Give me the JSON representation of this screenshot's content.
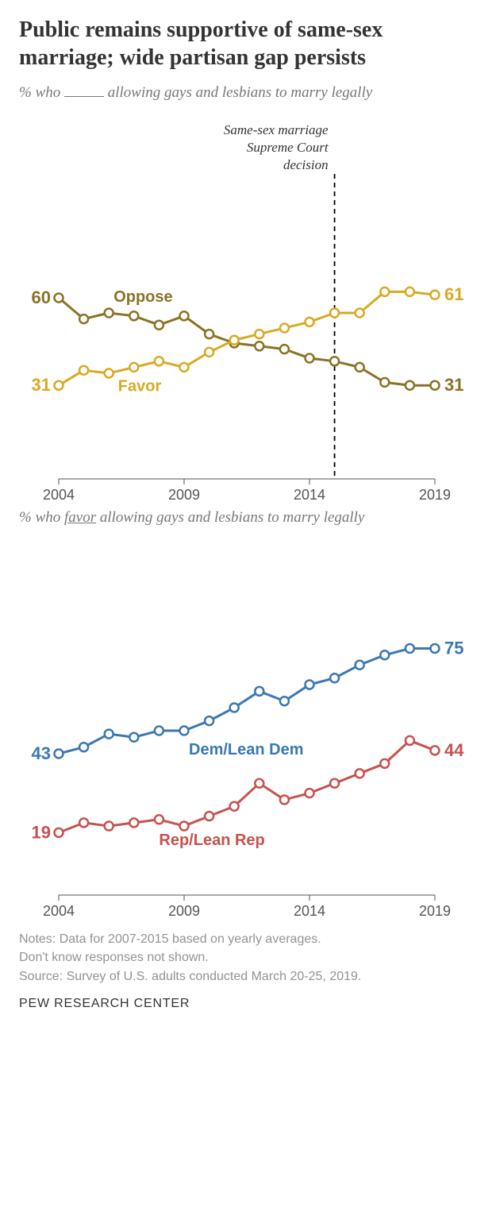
{
  "title": "Public remains supportive of same-sex marriage; wide partisan gap persists",
  "chart1": {
    "subtitle_pre": "% who ",
    "subtitle_post": " allowing gays and lesbians to marry legally",
    "years": [
      2004,
      2005,
      2006,
      2007,
      2008,
      2009,
      2010,
      2011,
      2012,
      2013,
      2014,
      2015,
      2016,
      2017,
      2018,
      2019
    ],
    "oppose": {
      "label": "Oppose",
      "color": "#8a7325",
      "values": [
        60,
        53,
        55,
        54,
        51,
        54,
        48,
        45,
        44,
        43,
        40,
        39,
        37,
        32,
        31,
        31
      ],
      "start_label": "60",
      "end_label": "31"
    },
    "favor": {
      "label": "Favor",
      "color": "#d8aa23",
      "values": [
        31,
        36,
        35,
        37,
        39,
        37,
        42,
        46,
        48,
        50,
        52,
        55,
        55,
        62,
        62,
        61
      ],
      "start_label": "31",
      "end_label": "61"
    },
    "annotation": {
      "line1": "Same-sex marriage",
      "line2": "Supreme Court",
      "line3": "decision",
      "year": 2015
    },
    "x_ticks": [
      2004,
      2009,
      2014,
      2019
    ],
    "y_range": [
      0,
      100
    ]
  },
  "chart2": {
    "subtitle_pre": "% who ",
    "subtitle_u": "favor",
    "subtitle_post": " allowing gays and lesbians to marry legally",
    "years": [
      2004,
      2005,
      2006,
      2007,
      2008,
      2009,
      2010,
      2011,
      2012,
      2013,
      2014,
      2015,
      2016,
      2017,
      2018,
      2019
    ],
    "dem": {
      "label": "Dem/Lean Dem",
      "color": "#3b77b3",
      "values": [
        43,
        45,
        49,
        48,
        50,
        50,
        53,
        57,
        62,
        59,
        64,
        66,
        70,
        73,
        75,
        75
      ],
      "start_label": "43",
      "end_label": "75"
    },
    "rep": {
      "label": "Rep/Lean Rep",
      "color": "#c5524f",
      "values": [
        19,
        22,
        21,
        22,
        23,
        21,
        24,
        27,
        34,
        29,
        31,
        34,
        37,
        40,
        47,
        44
      ],
      "start_label": "19",
      "end_label": "44"
    },
    "x_ticks": [
      2004,
      2009,
      2014,
      2019
    ],
    "y_range": [
      0,
      100
    ]
  },
  "notes": {
    "line1": "Notes: Data for 2007-2015 based on yearly averages.",
    "line2": "Don't know responses not shown.",
    "line3": "Source: Survey of U.S. adults conducted March 20-25, 2019."
  },
  "footer": "PEW RESEARCH CENTER"
}
